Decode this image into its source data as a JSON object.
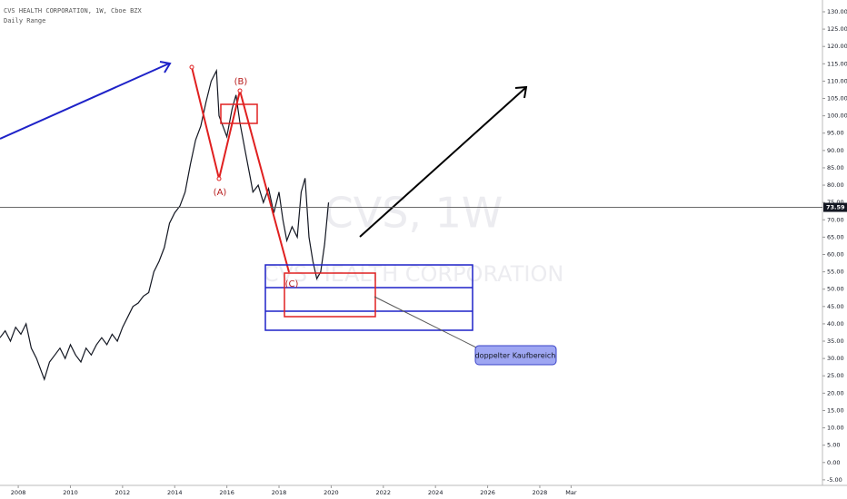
{
  "chart_data": {
    "type": "line",
    "title": "CVS HEALTH CORPORATION, 1W, Cboe BZX",
    "subtitle": "Daily Range",
    "watermark": "CVS, 1W",
    "watermark_name": "CVS HEALTH CORPORATION",
    "annotations": [
      "(A)",
      "(B)",
      "(C)",
      "doppelter Kaufbereich"
    ],
    "last_price": 73.59,
    "x": [
      2007.3,
      2007.5,
      2007.7,
      2007.9,
      2008.1,
      2008.3,
      2008.5,
      2008.7,
      2008.9,
      2009.0,
      2009.2,
      2009.4,
      2009.6,
      2009.8,
      2010.0,
      2010.2,
      2010.4,
      2010.6,
      2010.8,
      2011.0,
      2011.2,
      2011.4,
      2011.6,
      2011.8,
      2012.0,
      2012.2,
      2012.4,
      2012.6,
      2012.8,
      2013.0,
      2013.2,
      2013.4,
      2013.6,
      2013.8,
      2014.0,
      2014.2,
      2014.4,
      2014.6,
      2014.8,
      2015.0,
      2015.2,
      2015.4,
      2015.6,
      2015.7,
      2015.8,
      2016.0,
      2016.2,
      2016.35,
      2016.5,
      2016.7,
      2016.9,
      2017.0,
      2017.2,
      2017.4,
      2017.6,
      2017.8,
      2018.0,
      2018.15,
      2018.3,
      2018.5,
      2018.7,
      2018.85,
      2019.0,
      2019.15,
      2019.3,
      2019.45,
      2019.6,
      2019.75,
      2019.9
    ],
    "series": [
      {
        "color": "#131722",
        "values": [
          36,
          38,
          35,
          39,
          37,
          40,
          33,
          30,
          26,
          24,
          29,
          31,
          33,
          30,
          34,
          31,
          29,
          33,
          31,
          34,
          36,
          34,
          37,
          35,
          39,
          42,
          45,
          46,
          48,
          49,
          55,
          58,
          62,
          69,
          72,
          74,
          78,
          86,
          93,
          97,
          104,
          110,
          113,
          100,
          98,
          94,
          102,
          106,
          98,
          90,
          82,
          78,
          80,
          75,
          79,
          72,
          78,
          70,
          64,
          68,
          65,
          78,
          82,
          65,
          58,
          53,
          55,
          63,
          75
        ]
      }
    ],
    "xlim": [
      2007.3,
      2038.84
    ],
    "ylim": [
      -6.6,
      133.4
    ],
    "xticks": [
      2008,
      2010,
      2012,
      2014,
      2016,
      2018,
      2020,
      2022,
      2024,
      2026,
      2028,
      {
        "value": 2029.2,
        "label": "Mar"
      }
    ],
    "yticks": [
      {
        "value": 130,
        "label": "130.00"
      },
      {
        "value": 125,
        "label": "125.00"
      },
      {
        "value": 120,
        "label": "120.00"
      },
      {
        "value": 115,
        "label": "115.00"
      },
      {
        "value": 110,
        "label": "110.00"
      },
      {
        "value": 105,
        "label": "105.00"
      },
      {
        "value": 100,
        "label": "100.00"
      },
      {
        "value": 95,
        "label": "95.00"
      },
      {
        "value": 90,
        "label": "90.00"
      },
      {
        "value": 85,
        "label": "85.00"
      },
      {
        "value": 80,
        "label": "80.00"
      },
      {
        "value": 75,
        "label": "75.00"
      },
      {
        "value": 70,
        "label": "70.00"
      },
      {
        "value": 65,
        "label": "65.00"
      },
      {
        "value": 60,
        "label": "60.00"
      },
      {
        "value": 55,
        "label": "55.00"
      },
      {
        "value": 50,
        "label": "50.00"
      },
      {
        "value": 45,
        "label": "45.00"
      },
      {
        "value": 40,
        "label": "40.00"
      },
      {
        "value": 35,
        "label": "35.00"
      },
      {
        "value": 30,
        "label": "30.00"
      },
      {
        "value": 25,
        "label": "25.00"
      },
      {
        "value": 20,
        "label": "20.00"
      },
      {
        "value": 15,
        "label": "15.00"
      },
      {
        "value": 10,
        "label": "10.00"
      },
      {
        "value": 5,
        "label": "5.00"
      },
      {
        "value": 0,
        "label": "0.00"
      },
      {
        "value": -5,
        "label": "-5.00"
      }
    ]
  }
}
